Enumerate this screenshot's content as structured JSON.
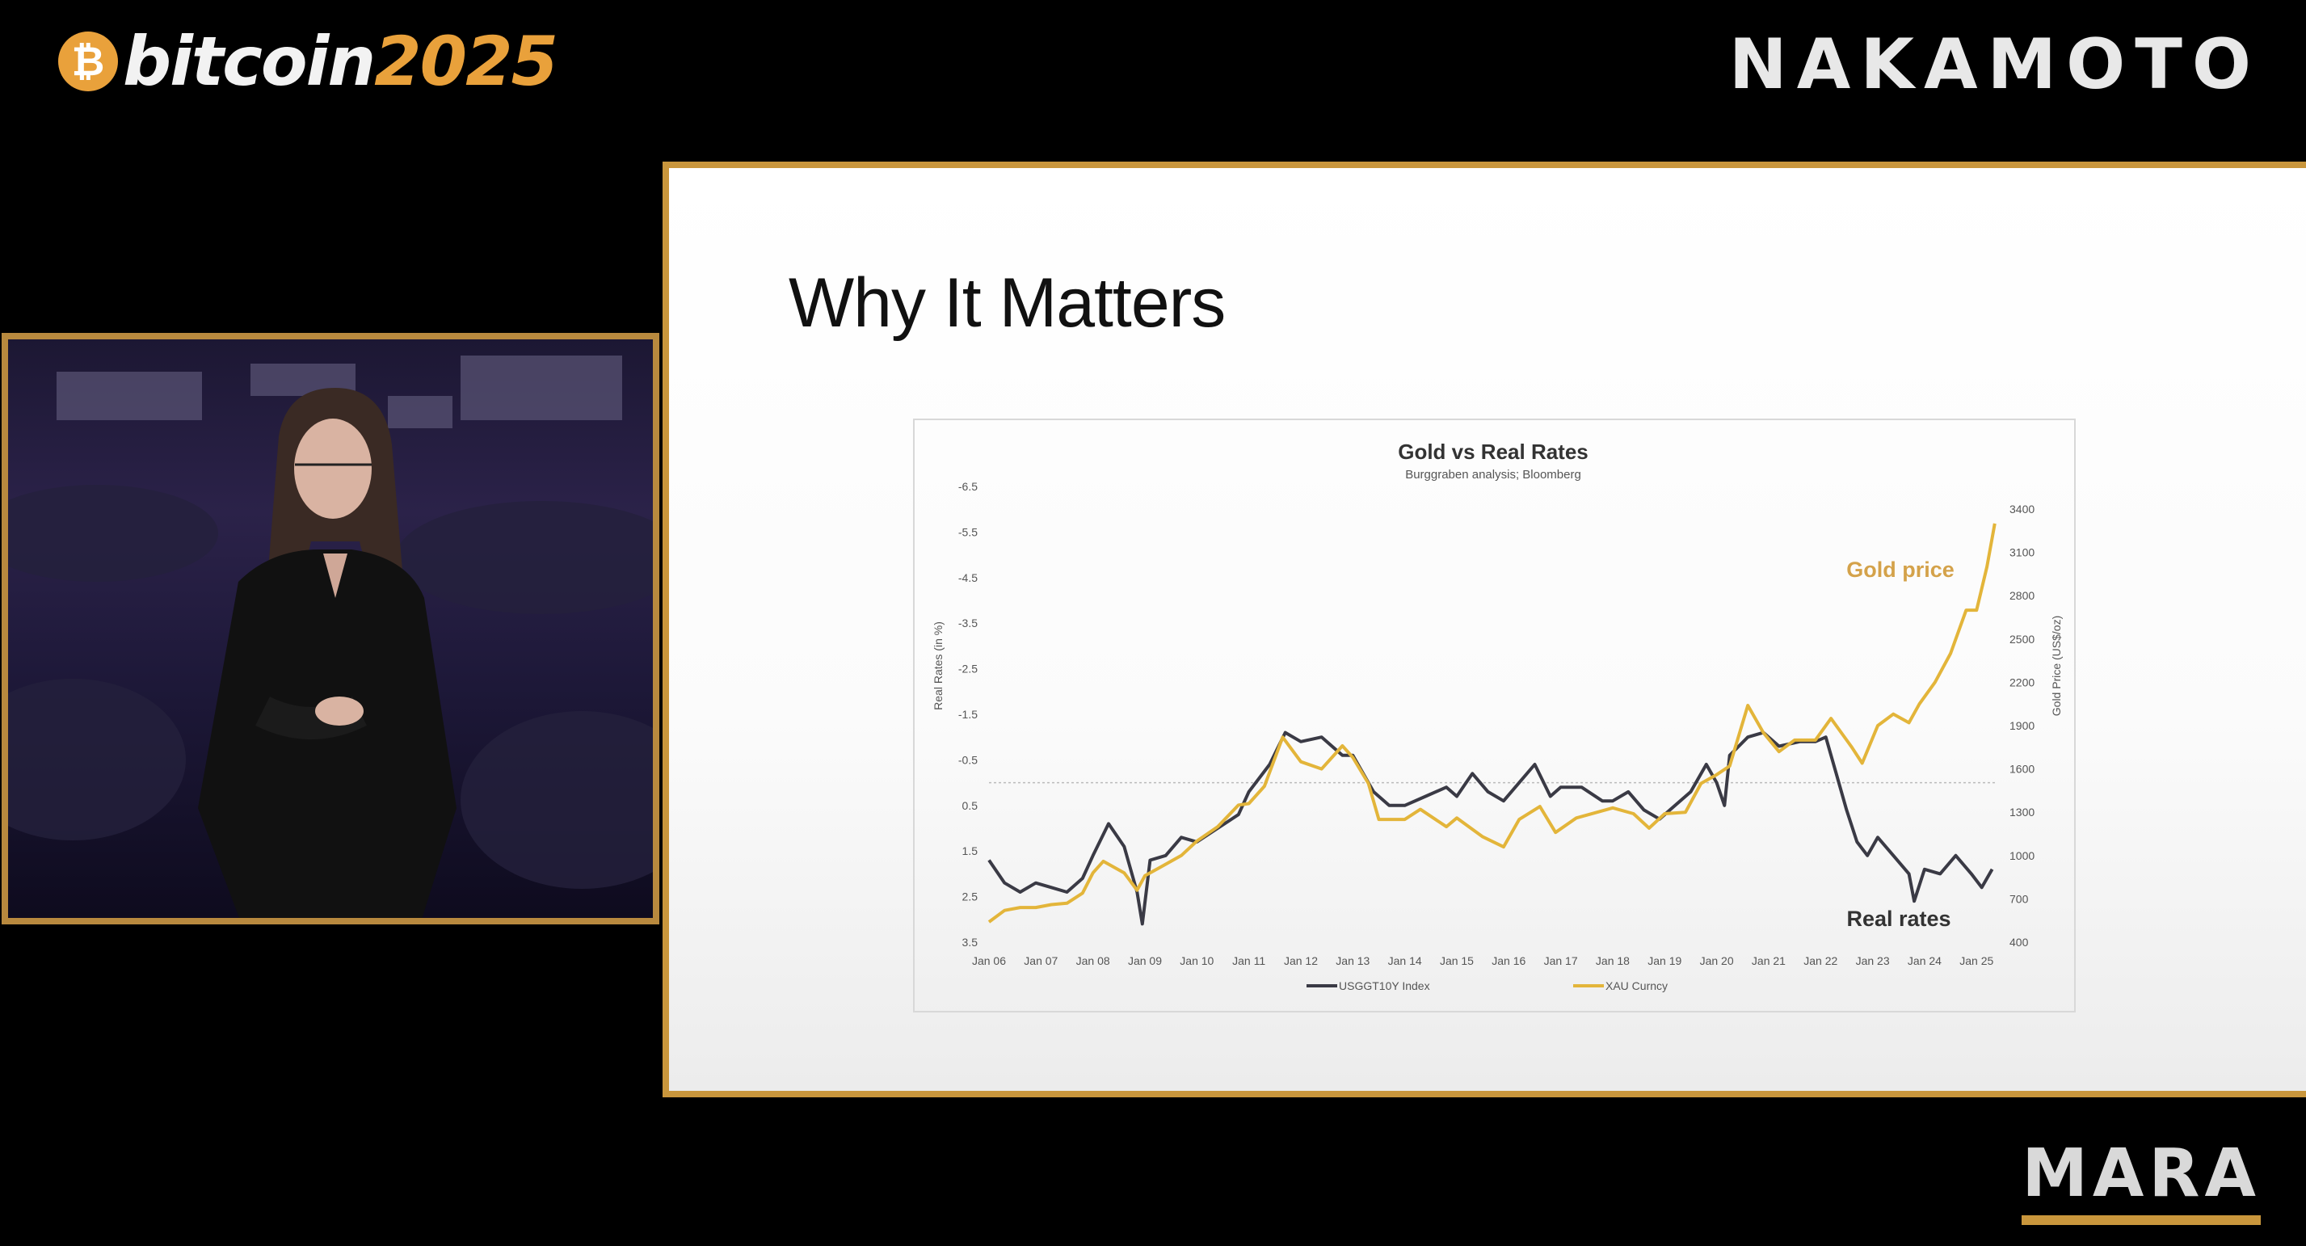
{
  "brand": {
    "coin_symbol": "₿",
    "word": "bitcoin",
    "year": "2025",
    "accent": "#e9a13b"
  },
  "sponsors": {
    "top": "NAKAMOTO",
    "bottom": "MARA"
  },
  "slide": {
    "title": "Why It Matters",
    "frame_color": "#c9963c"
  },
  "chart_data": {
    "type": "line",
    "title": "Gold  vs Real Rates",
    "subtitle": "Burggraben analysis; Bloomberg",
    "ylabel_left": "Real Rates (in %)",
    "ylabel_right": "Gold Price (US$/oz)",
    "y_left_ticks": [
      "-6.5",
      "-5.5",
      "-4.5",
      "-3.5",
      "-2.5",
      "-1.5",
      "-0.5",
      "0.5",
      "1.5",
      "2.5",
      "3.5"
    ],
    "y_left_range": [
      -6.5,
      3.5
    ],
    "y_left_inverted": true,
    "y_right_ticks": [
      "3400",
      "3100",
      "2800",
      "2500",
      "2200",
      "1900",
      "1600",
      "1300",
      "1000",
      "700",
      "400"
    ],
    "y_right_range": [
      400,
      3400
    ],
    "x_ticks": [
      "Jan 06",
      "Jan 07",
      "Jan 08",
      "Jan 09",
      "Jan 10",
      "Jan 11",
      "Jan 12",
      "Jan 13",
      "Jan 14",
      "Jan 15",
      "Jan 16",
      "Jan 17",
      "Jan 18",
      "Jan 19",
      "Jan 20",
      "Jan 21",
      "Jan 22",
      "Jan 23",
      "Jan 24",
      "Jan 25"
    ],
    "x_range": [
      2006.0,
      2025.4
    ],
    "legend": [
      {
        "name": "USGGT10Y Index",
        "color": "#3a3a45"
      },
      {
        "name": "XAU Curncy",
        "color": "#e3b53a"
      }
    ],
    "annotations": [
      {
        "text": "Gold price",
        "color": "#d4a24a"
      },
      {
        "text": "Real rates",
        "color": "#333333"
      }
    ],
    "series": [
      {
        "name": "USGGT10Y Index",
        "axis": "left",
        "color": "#3a3a45",
        "points": [
          [
            2006.0,
            1.7
          ],
          [
            2006.3,
            2.2
          ],
          [
            2006.6,
            2.4
          ],
          [
            2006.9,
            2.2
          ],
          [
            2007.2,
            2.3
          ],
          [
            2007.5,
            2.4
          ],
          [
            2007.8,
            2.1
          ],
          [
            2008.0,
            1.6
          ],
          [
            2008.3,
            0.9
          ],
          [
            2008.6,
            1.4
          ],
          [
            2008.85,
            2.4
          ],
          [
            2008.95,
            3.1
          ],
          [
            2009.1,
            1.7
          ],
          [
            2009.4,
            1.6
          ],
          [
            2009.7,
            1.2
          ],
          [
            2010.0,
            1.3
          ],
          [
            2010.4,
            1.0
          ],
          [
            2010.8,
            0.7
          ],
          [
            2011.0,
            0.2
          ],
          [
            2011.4,
            -0.4
          ],
          [
            2011.7,
            -1.1
          ],
          [
            2012.0,
            -0.9
          ],
          [
            2012.4,
            -1.0
          ],
          [
            2012.8,
            -0.6
          ],
          [
            2013.0,
            -0.6
          ],
          [
            2013.4,
            0.2
          ],
          [
            2013.7,
            0.5
          ],
          [
            2014.0,
            0.5
          ],
          [
            2014.4,
            0.3
          ],
          [
            2014.8,
            0.1
          ],
          [
            2015.0,
            0.3
          ],
          [
            2015.3,
            -0.2
          ],
          [
            2015.6,
            0.2
          ],
          [
            2015.9,
            0.4
          ],
          [
            2016.2,
            0.0
          ],
          [
            2016.5,
            -0.4
          ],
          [
            2016.8,
            0.3
          ],
          [
            2017.0,
            0.1
          ],
          [
            2017.4,
            0.1
          ],
          [
            2017.8,
            0.4
          ],
          [
            2018.0,
            0.4
          ],
          [
            2018.3,
            0.2
          ],
          [
            2018.6,
            0.6
          ],
          [
            2018.9,
            0.8
          ],
          [
            2019.1,
            0.6
          ],
          [
            2019.5,
            0.2
          ],
          [
            2019.8,
            -0.4
          ],
          [
            2020.0,
            0.0
          ],
          [
            2020.15,
            0.5
          ],
          [
            2020.25,
            -0.6
          ],
          [
            2020.6,
            -1.0
          ],
          [
            2020.9,
            -1.1
          ],
          [
            2021.2,
            -0.8
          ],
          [
            2021.6,
            -0.9
          ],
          [
            2021.9,
            -0.9
          ],
          [
            2022.1,
            -1.0
          ],
          [
            2022.3,
            -0.2
          ],
          [
            2022.5,
            0.6
          ],
          [
            2022.7,
            1.3
          ],
          [
            2022.9,
            1.6
          ],
          [
            2023.1,
            1.2
          ],
          [
            2023.4,
            1.6
          ],
          [
            2023.7,
            2.0
          ],
          [
            2023.8,
            2.6
          ],
          [
            2024.0,
            1.9
          ],
          [
            2024.3,
            2.0
          ],
          [
            2024.6,
            1.6
          ],
          [
            2024.9,
            2.0
          ],
          [
            2025.1,
            2.3
          ],
          [
            2025.3,
            1.9
          ]
        ]
      },
      {
        "name": "XAU Curncy",
        "axis": "right",
        "color": "#e3b53a",
        "points": [
          [
            2006.0,
            540
          ],
          [
            2006.3,
            620
          ],
          [
            2006.6,
            640
          ],
          [
            2006.9,
            640
          ],
          [
            2007.2,
            660
          ],
          [
            2007.5,
            670
          ],
          [
            2007.8,
            740
          ],
          [
            2008.0,
            880
          ],
          [
            2008.2,
            960
          ],
          [
            2008.6,
            880
          ],
          [
            2008.85,
            760
          ],
          [
            2009.0,
            860
          ],
          [
            2009.3,
            920
          ],
          [
            2009.7,
            1000
          ],
          [
            2010.0,
            1100
          ],
          [
            2010.4,
            1200
          ],
          [
            2010.8,
            1350
          ],
          [
            2011.0,
            1360
          ],
          [
            2011.3,
            1480
          ],
          [
            2011.65,
            1820
          ],
          [
            2012.0,
            1650
          ],
          [
            2012.4,
            1600
          ],
          [
            2012.8,
            1760
          ],
          [
            2013.0,
            1680
          ],
          [
            2013.3,
            1500
          ],
          [
            2013.5,
            1250
          ],
          [
            2014.0,
            1250
          ],
          [
            2014.3,
            1320
          ],
          [
            2014.8,
            1200
          ],
          [
            2015.0,
            1260
          ],
          [
            2015.5,
            1130
          ],
          [
            2015.9,
            1060
          ],
          [
            2016.2,
            1250
          ],
          [
            2016.6,
            1340
          ],
          [
            2016.9,
            1160
          ],
          [
            2017.3,
            1260
          ],
          [
            2017.7,
            1300
          ],
          [
            2018.0,
            1330
          ],
          [
            2018.4,
            1290
          ],
          [
            2018.7,
            1190
          ],
          [
            2019.0,
            1290
          ],
          [
            2019.4,
            1300
          ],
          [
            2019.7,
            1500
          ],
          [
            2020.0,
            1560
          ],
          [
            2020.25,
            1620
          ],
          [
            2020.6,
            2040
          ],
          [
            2020.9,
            1850
          ],
          [
            2021.2,
            1720
          ],
          [
            2021.5,
            1800
          ],
          [
            2021.9,
            1800
          ],
          [
            2022.2,
            1950
          ],
          [
            2022.6,
            1750
          ],
          [
            2022.8,
            1640
          ],
          [
            2023.1,
            1900
          ],
          [
            2023.4,
            1980
          ],
          [
            2023.7,
            1920
          ],
          [
            2023.9,
            2050
          ],
          [
            2024.2,
            2200
          ],
          [
            2024.5,
            2400
          ],
          [
            2024.8,
            2700
          ],
          [
            2025.0,
            2700
          ],
          [
            2025.2,
            3000
          ],
          [
            2025.3,
            3200
          ],
          [
            2025.35,
            3300
          ]
        ]
      }
    ]
  }
}
